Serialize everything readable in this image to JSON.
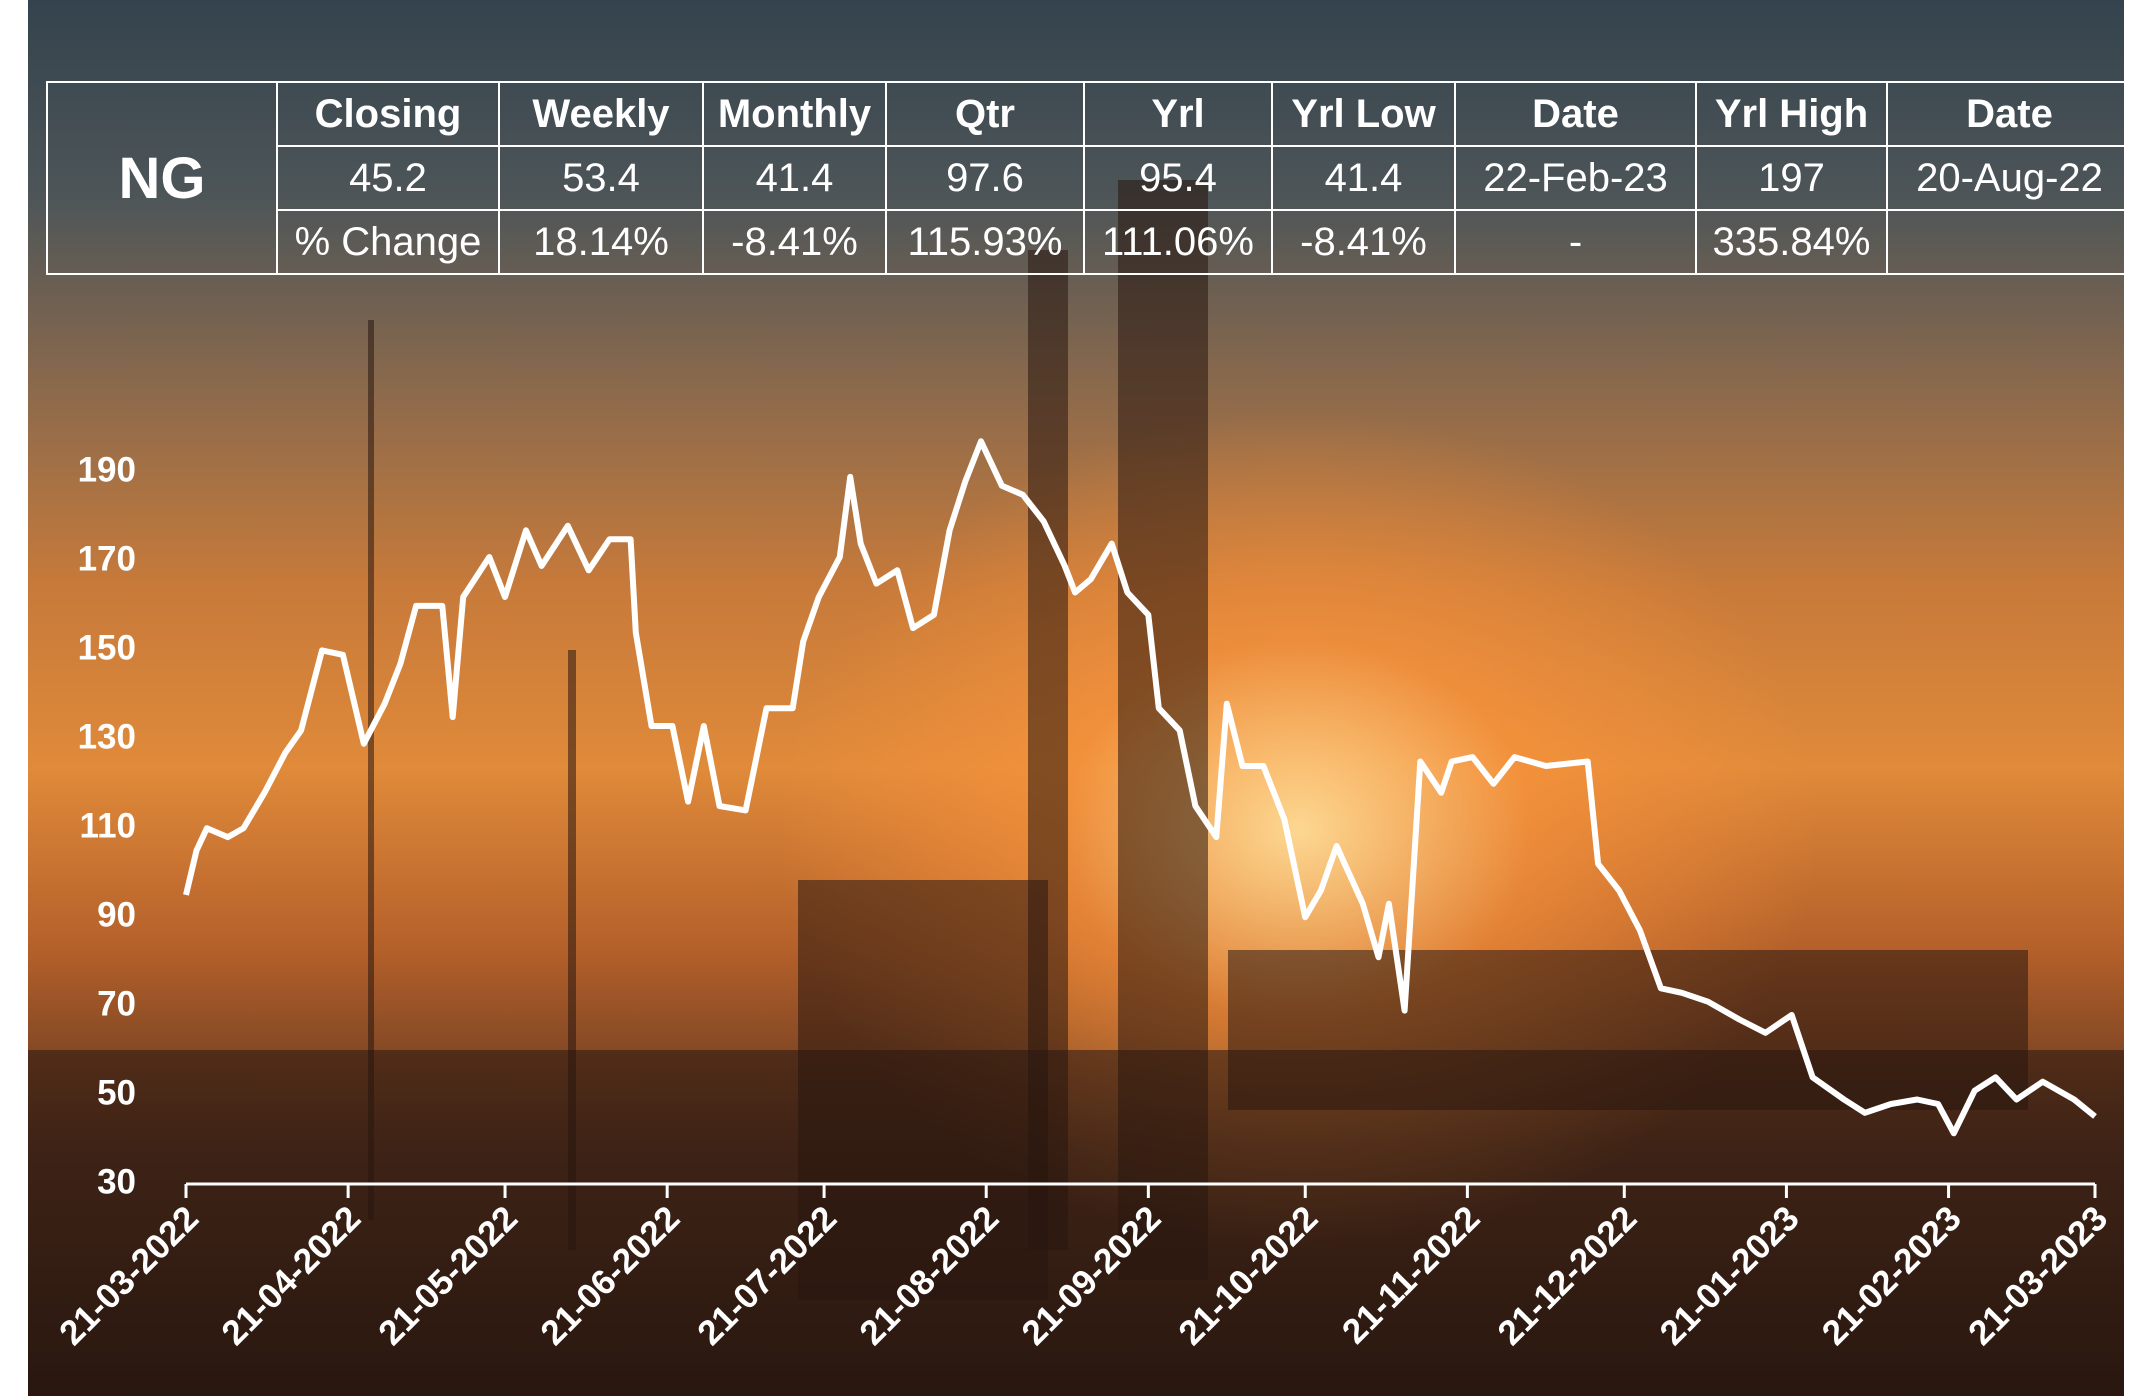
{
  "table": {
    "symbol": "NG",
    "header": [
      "Closing",
      "Weekly",
      "Monthly",
      "Qtr",
      "Yrl",
      "Yrl Low",
      "Date",
      "Yrl High",
      "Date"
    ],
    "rows": [
      [
        "45.2",
        "53.4",
        "41.4",
        "97.6",
        "95.4",
        "41.4",
        "22-Feb-23",
        "197",
        "20-Aug-22"
      ],
      [
        "% Change",
        "18.14%",
        "-8.41%",
        "115.93%",
        "111.06%",
        "-8.41%",
        "-",
        "335.84%"
      ]
    ]
  },
  "chart_data": {
    "type": "line",
    "color": "#ffffff",
    "x": [
      "21-03-2022",
      "23-03-2022",
      "25-03-2022",
      "29-03-2022",
      "01-04-2022",
      "05-04-2022",
      "09-04-2022",
      "12-04-2022",
      "16-04-2022",
      "20-04-2022",
      "24-04-2022",
      "28-04-2022",
      "01-05-2022",
      "04-05-2022",
      "09-05-2022",
      "11-05-2022",
      "13-05-2022",
      "18-05-2022",
      "21-05-2022",
      "25-05-2022",
      "28-05-2022",
      "02-06-2022",
      "06-06-2022",
      "10-06-2022",
      "14-06-2022",
      "15-06-2022",
      "18-06-2022",
      "22-06-2022",
      "25-06-2022",
      "28-06-2022",
      "01-07-2022",
      "06-07-2022",
      "10-07-2022",
      "15-07-2022",
      "17-07-2022",
      "20-07-2022",
      "24-07-2022",
      "26-07-2022",
      "28-07-2022",
      "31-07-2022",
      "04-08-2022",
      "07-08-2022",
      "11-08-2022",
      "14-08-2022",
      "17-08-2022",
      "20-08-2022",
      "24-08-2022",
      "28-08-2022",
      "01-09-2022",
      "05-09-2022",
      "07-09-2022",
      "10-09-2022",
      "14-09-2022",
      "17-09-2022",
      "21-09-2022",
      "23-09-2022",
      "27-09-2022",
      "30-09-2022",
      "04-10-2022",
      "06-10-2022",
      "09-10-2022",
      "13-10-2022",
      "17-10-2022",
      "21-10-2022",
      "24-10-2022",
      "27-10-2022",
      "01-11-2022",
      "04-11-2022",
      "06-11-2022",
      "09-11-2022",
      "12-11-2022",
      "16-11-2022",
      "18-11-2022",
      "22-11-2022",
      "26-11-2022",
      "30-11-2022",
      "06-12-2022",
      "14-12-2022",
      "16-12-2022",
      "20-12-2022",
      "24-12-2022",
      "28-12-2022",
      "01-01-2023",
      "06-01-2023",
      "12-01-2023",
      "17-01-2023",
      "22-01-2023",
      "26-01-2023",
      "01-02-2023",
      "05-02-2023",
      "10-02-2023",
      "15-02-2023",
      "19-02-2023",
      "22-02-2023",
      "26-02-2023",
      "02-03-2023",
      "06-03-2023",
      "11-03-2023",
      "17-03-2023",
      "21-03-2023"
    ],
    "values": [
      95,
      105,
      110,
      108,
      110,
      118,
      127,
      132,
      150,
      149,
      129,
      138,
      147,
      160,
      160,
      135,
      162,
      171,
      162,
      177,
      169,
      178,
      168,
      175,
      175,
      154,
      133,
      133,
      116,
      133,
      115,
      114,
      137,
      137,
      152,
      162,
      171,
      189,
      174,
      165,
      168,
      155,
      158,
      177,
      188,
      197,
      187,
      185,
      179,
      169,
      163,
      166,
      174,
      163,
      158,
      137,
      132,
      115,
      108,
      138,
      124,
      124,
      112,
      90,
      96,
      106,
      93,
      81,
      93,
      69,
      125,
      118,
      125,
      126,
      120,
      126,
      124,
      125,
      102,
      96,
      87,
      74,
      73,
      71,
      67,
      64,
      68,
      54,
      49,
      46,
      48,
      49,
      48,
      41.4,
      51,
      54,
      49,
      53,
      49,
      45.2
    ],
    "xlim": [
      "21-03-2022",
      "21-03-2023"
    ],
    "xticks": [
      "21-03-2022",
      "21-04-2022",
      "21-05-2022",
      "21-06-2022",
      "21-07-2022",
      "21-08-2022",
      "21-09-2022",
      "21-10-2022",
      "21-11-2022",
      "21-12-2022",
      "21-01-2023",
      "21-02-2023",
      "21-03-2023"
    ],
    "ylim": [
      30,
      200
    ],
    "yticks": [
      30,
      50,
      70,
      90,
      110,
      130,
      150,
      170,
      190
    ]
  }
}
